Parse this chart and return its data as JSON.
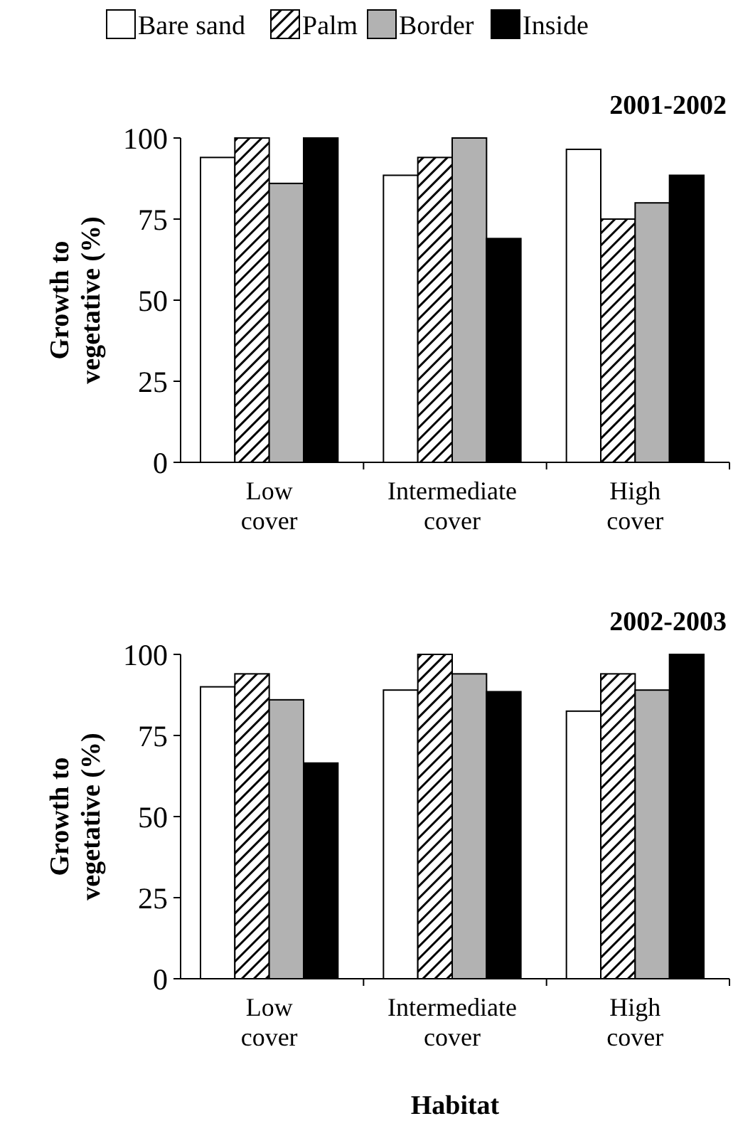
{
  "chart_data": [
    {
      "type": "bar",
      "title": "2001-2002",
      "ylabel": "Growth to vegetative (%)",
      "categories": [
        "Low cover",
        "Intermediate cover",
        "High cover"
      ],
      "ylim": [
        0,
        100
      ],
      "yticks": [
        0,
        25,
        50,
        75,
        100
      ],
      "legend": "top",
      "series": [
        {
          "name": "Bare sand",
          "color": "#ffffff",
          "values": [
            94,
            88.5,
            96.5
          ]
        },
        {
          "name": "Palm",
          "color": "#000000",
          "values": [
            100,
            94,
            75
          ]
        },
        {
          "name": "Border",
          "color": "#b2b2b2",
          "values": [
            86,
            100,
            80
          ]
        },
        {
          "name": "Inside",
          "color": "#000000",
          "values": [
            100,
            69,
            88.5
          ]
        }
      ]
    },
    {
      "type": "bar",
      "title": "2002-2003",
      "ylabel": "Growth to vegetative (%)",
      "xlabel": "Habitat",
      "categories": [
        "Low cover",
        "Intermediate cover",
        "High cover"
      ],
      "ylim": [
        0,
        100
      ],
      "yticks": [
        0,
        25,
        50,
        75,
        100
      ],
      "series": [
        {
          "color": "#ffffff",
          "values": [
            90,
            89,
            82.5
          ]
        },
        {
          "color": "#000000",
          "values": [
            94,
            100,
            94
          ]
        },
        {
          "color": "#b2b2b2",
          "values": [
            86,
            94,
            89
          ]
        },
        {
          "color": "#000000",
          "values": [
            66.5,
            88.5,
            100
          ]
        }
      ]
    }
  ]
}
